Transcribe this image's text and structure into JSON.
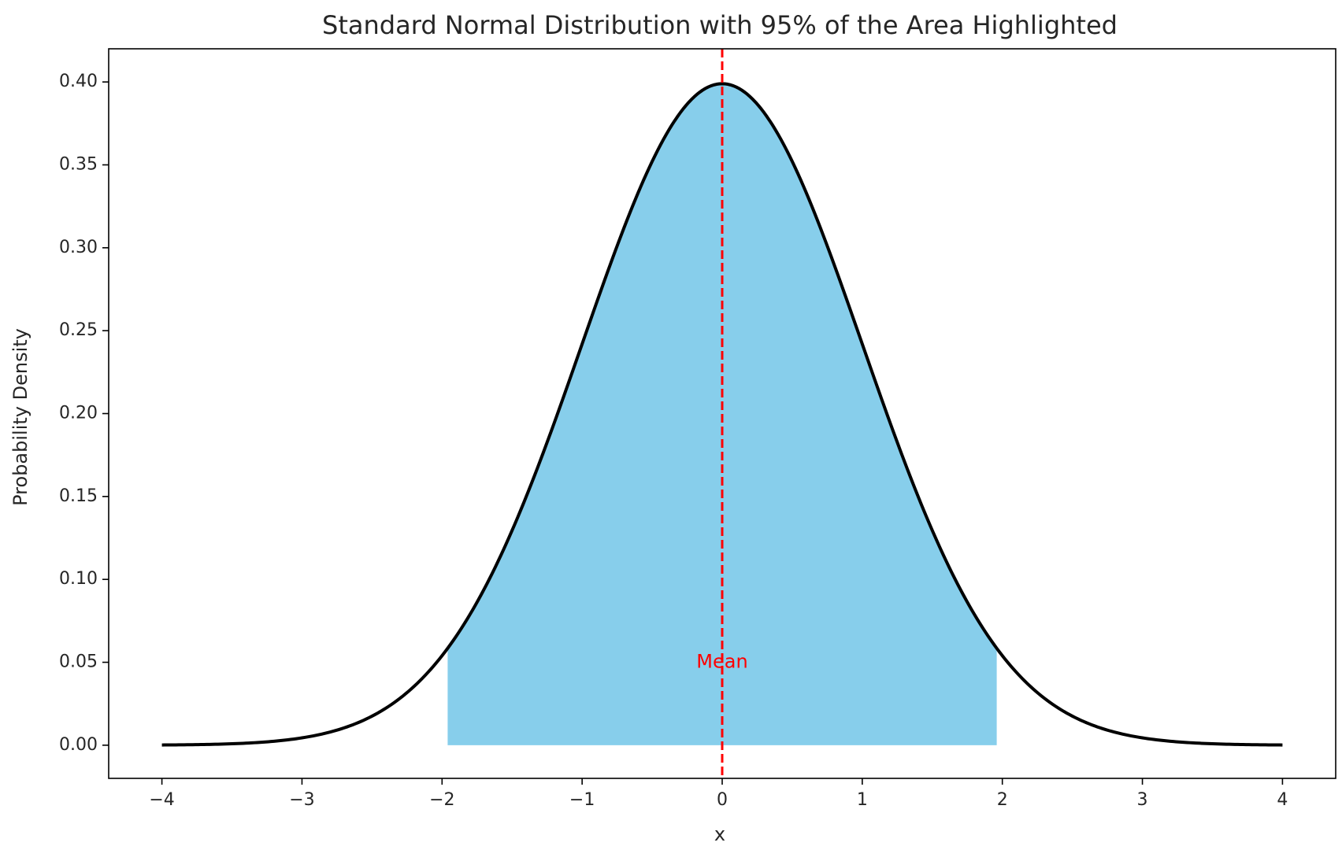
{
  "chart_data": {
    "type": "line",
    "title": "Standard Normal Distribution with 95% of the Area Highlighted",
    "xlabel": "x",
    "ylabel": "Probability Density",
    "xlim": [
      -4.38,
      4.38
    ],
    "ylim": [
      -0.02,
      0.42
    ],
    "x_ticks": [
      -4,
      -3,
      -2,
      -1,
      0,
      1,
      2,
      3,
      4
    ],
    "x_tick_labels": [
      "−4",
      "−3",
      "−2",
      "−1",
      "0",
      "1",
      "2",
      "3",
      "4"
    ],
    "y_ticks": [
      0.0,
      0.05,
      0.1,
      0.15,
      0.2,
      0.25,
      0.3,
      0.35,
      0.4
    ],
    "y_tick_labels": [
      "0.00",
      "0.05",
      "0.10",
      "0.15",
      "0.20",
      "0.25",
      "0.30",
      "0.35",
      "0.40"
    ],
    "grid": false,
    "series": [
      {
        "distribution": "standard normal",
        "mean": 0,
        "std": 1,
        "x_range": [
          -4,
          4
        ],
        "color": "#000000"
      }
    ],
    "shaded_region": {
      "x_range": [
        -1.96,
        1.96
      ],
      "color": "#87ceeb"
    },
    "mean_line": {
      "x": 0,
      "color": "#ff0000",
      "style": "dashed",
      "annotation": "Mean",
      "annotation_y": 0.05,
      "annotation_color": "#ff0000"
    }
  }
}
